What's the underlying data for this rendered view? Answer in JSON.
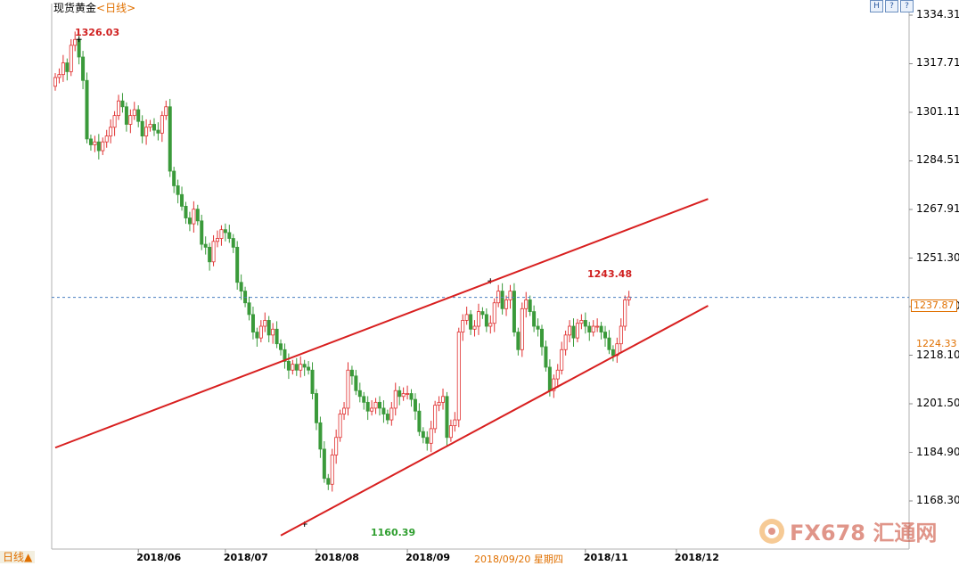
{
  "header": {
    "instrument": "现货黄金",
    "period": "<日线>",
    "buttons": [
      "H",
      "?",
      "?"
    ]
  },
  "badge": "日线▲",
  "watermark": "FX678 汇通网",
  "price_labels": {
    "last": "1237.87",
    "prev": "1224.33"
  },
  "annotations": {
    "high_start": "1326.03",
    "high_mid": "1243.48",
    "low": "1160.39"
  },
  "cursor_date": "2018/09/20 星期四",
  "chart_data": {
    "type": "candlestick",
    "title": "现货黄金",
    "y_ticks": [
      1334.31,
      1317.71,
      1301.11,
      1284.51,
      1267.91,
      1251.3,
      1234.7,
      1218.1,
      1201.5,
      1184.9,
      1168.3
    ],
    "y_tick_labels": [
      "1334.31",
      "1317.71",
      "1301.11",
      "1284.51",
      "1267.91",
      "1251.30",
      "1234.70",
      "1218.10",
      "1201.50",
      "1184.90",
      "1168.30"
    ],
    "ylim": [
      1158,
      1338
    ],
    "x_tick_labels": [
      "2018/06",
      "2018/07",
      "2018/08",
      "2018/09",
      "2018/11",
      "2018/12"
    ],
    "x_tick_days": [
      21,
      43,
      66,
      89,
      134,
      157
    ],
    "n_days": 165,
    "series": [
      {
        "values": [
          1313,
          1314,
          1318,
          1315,
          1324,
          1326,
          1320,
          1312,
          1292,
          1290,
          1291,
          1288,
          1291,
          1293,
          1296,
          1300,
          1305,
          1303,
          1297,
          1300,
          1302,
          1298,
          1293,
          1296,
          1297,
          1295,
          1294,
          1300,
          1303,
          1281,
          1276,
          1273,
          1269,
          1265,
          1263,
          1268,
          1264,
          1256,
          1255,
          1250,
          1257,
          1258,
          1261,
          1260,
          1258,
          1255,
          1243,
          1240,
          1236,
          1232,
          1226,
          1224,
          1228,
          1230,
          1225,
          1227,
          1222,
          1220,
          1216,
          1213,
          1215,
          1213,
          1215,
          1214,
          1213,
          1205,
          1195,
          1186,
          1176,
          1174,
          1184,
          1190,
          1198,
          1200,
          1213,
          1211,
          1206,
          1204,
          1202,
          1199,
          1200,
          1202,
          1200,
          1198,
          1196,
          1200,
          1206,
          1204,
          1205,
          1205,
          1203,
          1199,
          1192,
          1190,
          1188,
          1193,
          1201,
          1202,
          1204,
          1190,
          1194,
          1196,
          1226,
          1230,
          1232,
          1227,
          1228,
          1233,
          1232,
          1228,
          1229,
          1236,
          1240,
          1234,
          1237,
          1240,
          1226,
          1220,
          1234,
          1237,
          1233,
          1228,
          1227,
          1221,
          1214,
          1206,
          1210,
          1213,
          1220,
          1225,
          1228,
          1224,
          1229,
          1230,
          1228,
          1226,
          1228,
          1228,
          1226,
          1224,
          1220,
          1218,
          1222,
          1228,
          1237,
          1238
        ]
      }
    ],
    "channel_upper": {
      "from": {
        "day": 0,
        "price": 1186.5
      },
      "to": {
        "day": 165,
        "price": 1271.5
      }
    },
    "channel_lower": {
      "from": {
        "day": 57,
        "price": 1156.5
      },
      "to": {
        "day": 165,
        "price": 1235.0
      }
    },
    "reference_line": 1237.87,
    "highs": [
      {
        "day": 6,
        "price": 1326.03
      },
      {
        "day": 110,
        "price": 1243.48
      }
    ],
    "lows": [
      {
        "day": 63,
        "price": 1160.39
      }
    ],
    "grid": true
  }
}
